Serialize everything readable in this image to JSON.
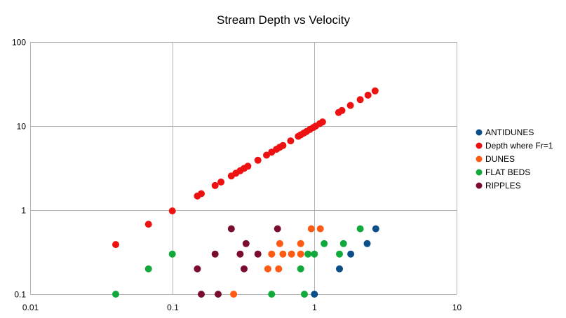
{
  "chart_data": {
    "type": "scatter",
    "title": "Stream Depth vs Velocity",
    "xlabel": "",
    "ylabel": "",
    "x_scale": "log",
    "y_scale": "log",
    "xlim": [
      0.01,
      10
    ],
    "ylim": [
      0.1,
      100
    ],
    "x_ticks": [
      "0.01",
      "0.1",
      "1",
      "10"
    ],
    "y_ticks": [
      "0.1",
      "1",
      "10",
      "100"
    ],
    "grid": true,
    "legend_position": "right",
    "series": [
      {
        "name": "ANTIDUNES",
        "color": "#0b4f8a",
        "points": [
          [
            1.0,
            0.1
          ],
          [
            1.5,
            0.2
          ],
          [
            1.8,
            0.3
          ],
          [
            2.35,
            0.4
          ],
          [
            2.7,
            0.6
          ]
        ]
      },
      {
        "name": "Depth where Fr=1",
        "color": "#ee1111",
        "points": [
          [
            0.04,
            0.39
          ],
          [
            0.068,
            0.68
          ],
          [
            0.1,
            0.98
          ],
          [
            0.15,
            1.47
          ],
          [
            0.16,
            1.57
          ],
          [
            0.2,
            1.96
          ],
          [
            0.22,
            2.16
          ],
          [
            0.26,
            2.55
          ],
          [
            0.28,
            2.75
          ],
          [
            0.3,
            2.94
          ],
          [
            0.32,
            3.14
          ],
          [
            0.34,
            3.33
          ],
          [
            0.4,
            3.92
          ],
          [
            0.46,
            4.51
          ],
          [
            0.5,
            4.9
          ],
          [
            0.54,
            5.3
          ],
          [
            0.57,
            5.6
          ],
          [
            0.6,
            5.88
          ],
          [
            0.68,
            6.67
          ],
          [
            0.77,
            7.55
          ],
          [
            0.8,
            7.85
          ],
          [
            0.84,
            8.24
          ],
          [
            0.88,
            8.63
          ],
          [
            0.93,
            9.12
          ],
          [
            0.98,
            9.6
          ],
          [
            1.02,
            10.0
          ],
          [
            1.09,
            10.7
          ],
          [
            1.14,
            11.2
          ],
          [
            1.48,
            14.5
          ],
          [
            1.56,
            15.3
          ],
          [
            1.79,
            17.6
          ],
          [
            2.1,
            20.6
          ],
          [
            2.38,
            23.3
          ],
          [
            2.67,
            26.2
          ]
        ]
      },
      {
        "name": "DUNES",
        "color": "#ff5a14",
        "points": [
          [
            0.27,
            0.1
          ],
          [
            0.47,
            0.2
          ],
          [
            0.56,
            0.2
          ],
          [
            0.5,
            0.3
          ],
          [
            0.6,
            0.3
          ],
          [
            0.69,
            0.3
          ],
          [
            0.8,
            0.3
          ],
          [
            0.57,
            0.4
          ],
          [
            0.8,
            0.4
          ],
          [
            0.95,
            0.6
          ],
          [
            1.1,
            0.6
          ]
        ]
      },
      {
        "name": "FLAT BEDS",
        "color": "#11a83c",
        "points": [
          [
            0.04,
            0.1
          ],
          [
            0.5,
            0.1
          ],
          [
            0.85,
            0.1
          ],
          [
            0.068,
            0.2
          ],
          [
            0.8,
            0.2
          ],
          [
            0.1,
            0.3
          ],
          [
            0.9,
            0.3
          ],
          [
            1.0,
            0.3
          ],
          [
            1.5,
            0.3
          ],
          [
            1.17,
            0.4
          ],
          [
            1.6,
            0.4
          ],
          [
            2.1,
            0.6
          ]
        ]
      },
      {
        "name": "RIPPLES",
        "color": "#7a0c2e",
        "points": [
          [
            0.16,
            0.1
          ],
          [
            0.21,
            0.1
          ],
          [
            0.15,
            0.2
          ],
          [
            0.32,
            0.2
          ],
          [
            0.2,
            0.3
          ],
          [
            0.3,
            0.3
          ],
          [
            0.4,
            0.3
          ],
          [
            0.33,
            0.4
          ],
          [
            0.26,
            0.6
          ],
          [
            0.55,
            0.6
          ]
        ]
      }
    ]
  }
}
